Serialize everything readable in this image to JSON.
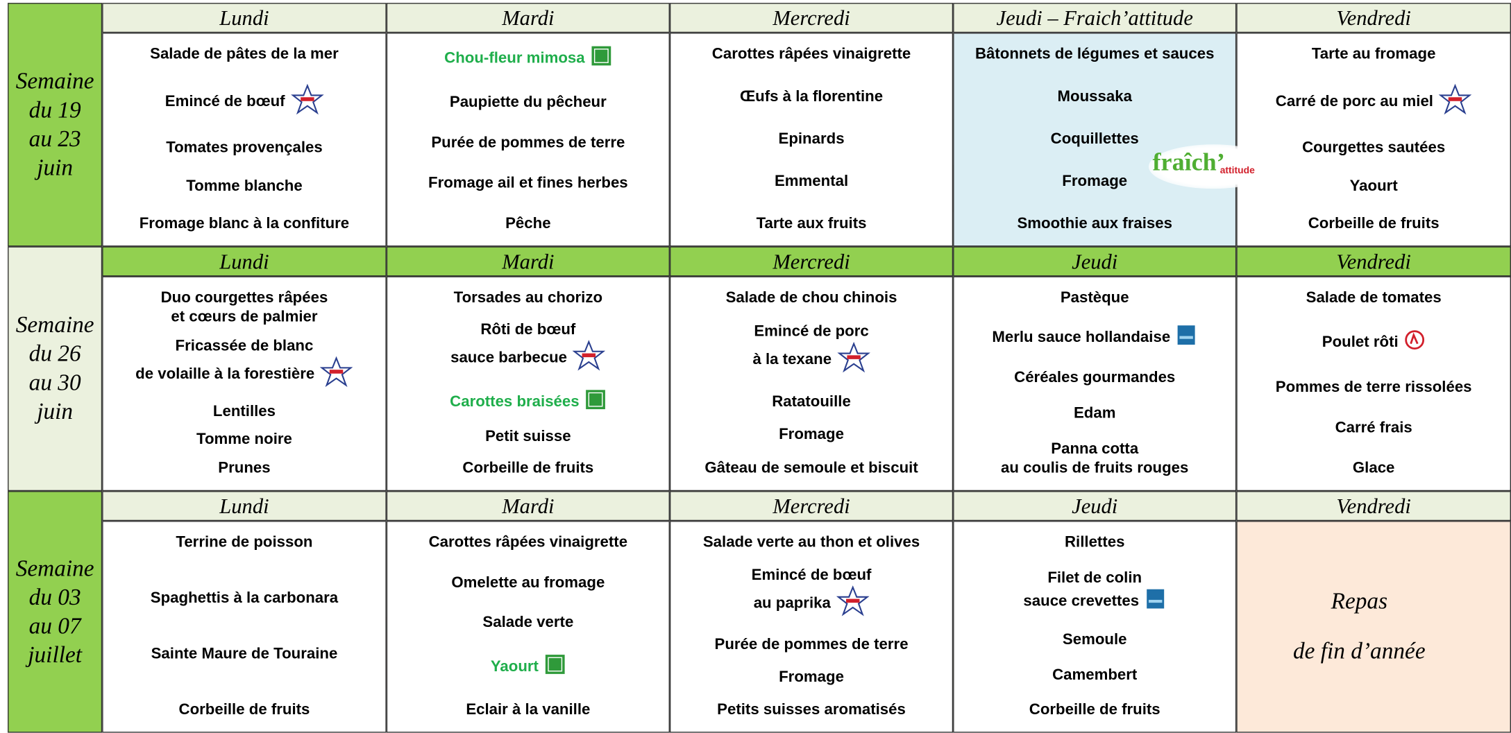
{
  "weeks": [
    {
      "label": "Semaine\ndu 19\nau 23\njuin",
      "days": [
        {
          "name": "Lundi",
          "items": [
            "Salade de pâtes de la mer",
            "Emincé de bœuf",
            "Tomates provençales",
            "Tomme blanche",
            "Fromage blanc à la confiture"
          ]
        },
        {
          "name": "Mardi",
          "items": [
            "Chou-fleur mimosa",
            "Paupiette du pêcheur",
            "Purée de pommes de terre",
            "Fromage ail et fines herbes",
            "Pêche"
          ]
        },
        {
          "name": "Mercredi",
          "items": [
            "Carottes râpées vinaigrette",
            "Œufs à la florentine",
            "Epinards",
            "Emmental",
            "Tarte aux fruits"
          ]
        },
        {
          "name": "Jeudi – Fraich’attitude",
          "items": [
            "Bâtonnets de légumes et sauces",
            "Moussaka",
            "Coquillettes",
            "Fromage",
            "Smoothie aux fraises"
          ]
        },
        {
          "name": "Vendredi",
          "items": [
            "Tarte au fromage",
            "Carré de porc au miel",
            "Courgettes sautées",
            "Yaourt",
            "Corbeille de fruits"
          ]
        }
      ]
    },
    {
      "label": "Semaine\ndu 26\nau 30\njuin",
      "days": [
        {
          "name": "Lundi",
          "items": [
            "Duo courgettes râpées\net cœurs de palmier",
            "Fricassée de blanc\nde volaille à la forestière",
            "Lentilles",
            "Tomme noire",
            "Prunes"
          ]
        },
        {
          "name": "Mardi",
          "items": [
            "Torsades au chorizo",
            "Rôti de bœuf\nsauce barbecue",
            "Carottes braisées",
            "Petit suisse",
            "Corbeille de fruits"
          ]
        },
        {
          "name": "Mercredi",
          "items": [
            "Salade de chou chinois",
            "Emincé de porc\nà la texane",
            "Ratatouille",
            "Fromage",
            "Gâteau de semoule et biscuit"
          ]
        },
        {
          "name": "Jeudi",
          "items": [
            "Pastèque",
            "Merlu sauce hollandaise",
            "Céréales gourmandes",
            "Edam",
            "Panna cotta\nau coulis de fruits rouges"
          ]
        },
        {
          "name": "Vendredi",
          "items": [
            "Salade de tomates",
            "Poulet rôti",
            "Pommes de terre rissolées",
            "Carré frais",
            "Glace"
          ]
        }
      ]
    },
    {
      "label": "Semaine\ndu 03\nau 07\njuillet",
      "days": [
        {
          "name": "Lundi",
          "items": [
            "Terrine de poisson",
            "Spaghettis à la carbonara",
            "Sainte Maure de Touraine",
            "Corbeille de fruits"
          ]
        },
        {
          "name": "Mardi",
          "items": [
            "Carottes râpées vinaigrette",
            "Omelette au fromage",
            "Salade verte",
            "Yaourt",
            "Eclair à la vanille"
          ]
        },
        {
          "name": "Mercredi",
          "items": [
            "Salade verte au thon et olives",
            "Emincé de bœuf\nau paprika",
            "Purée de pommes de terre",
            "Fromage",
            "Petits suisses aromatisés"
          ]
        },
        {
          "name": "Jeudi",
          "items": [
            "Rillettes",
            "Filet de colin\nsauce crevettes",
            "Semoule",
            "Camembert",
            "Corbeille de fruits"
          ]
        },
        {
          "name": "Vendredi",
          "items": [
            "Repas",
            "de fin d’année"
          ]
        }
      ]
    }
  ],
  "fraich_logo": [
    "fraîch’",
    "attitude"
  ]
}
